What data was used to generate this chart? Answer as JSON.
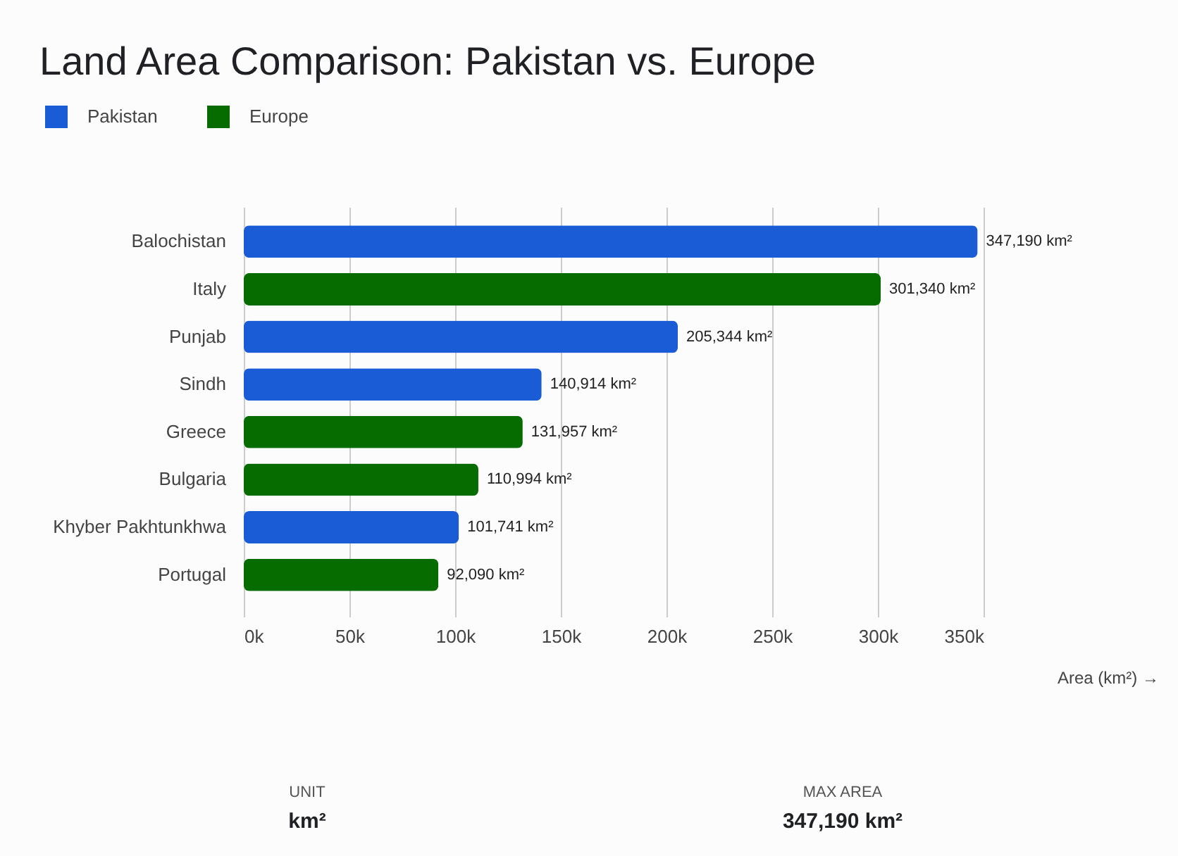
{
  "chart_data": {
    "type": "bar",
    "orientation": "horizontal",
    "title": "Land Area Comparison: Pakistan vs. Europe",
    "xlabel": "Area (km²) →",
    "categories": [
      "Balochistan",
      "Italy",
      "Punjab",
      "Sindh",
      "Greece",
      "Bulgaria",
      "Khyber Pakhtunkhwa",
      "Portugal"
    ],
    "series": [
      {
        "name": "Pakistan",
        "color": "#1a5bd6",
        "values": [
          347190,
          null,
          205344,
          140914,
          null,
          null,
          101741,
          null
        ],
        "value_labels": [
          "347,190 km²",
          null,
          "205,344 km²",
          "140,914 km²",
          null,
          null,
          "101,741 km²",
          null
        ]
      },
      {
        "name": "Europe",
        "color": "#066c00",
        "values": [
          null,
          301340,
          null,
          null,
          131957,
          110994,
          null,
          92090
        ],
        "value_labels": [
          null,
          "301,340 km²",
          null,
          null,
          "131,957 km²",
          "110,994 km²",
          null,
          "92,090 km²"
        ]
      }
    ],
    "xlim": [
      0,
      350000
    ],
    "xticks": [
      {
        "value": 0,
        "label": "0k"
      },
      {
        "value": 50000,
        "label": "50k"
      },
      {
        "value": 100000,
        "label": "100k"
      },
      {
        "value": 150000,
        "label": "150k"
      },
      {
        "value": 200000,
        "label": "200k"
      },
      {
        "value": 250000,
        "label": "250k"
      },
      {
        "value": 300000,
        "label": "300k"
      },
      {
        "value": 350000,
        "label": "350k"
      }
    ],
    "grid": "x",
    "legend": "top left",
    "annotations": [
      "UNIT",
      "km²",
      "MAX AREA",
      "347,190 km²"
    ]
  }
}
